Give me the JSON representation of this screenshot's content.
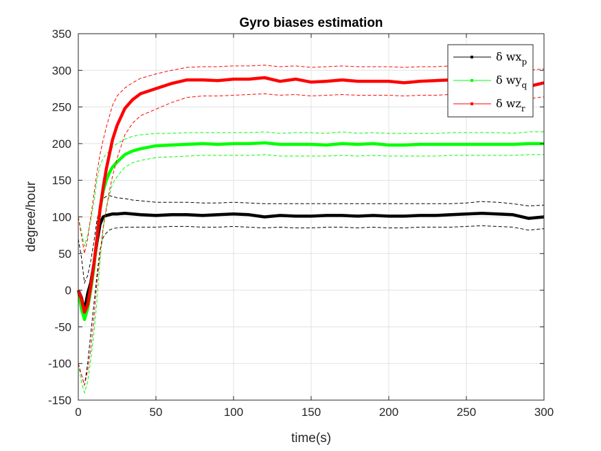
{
  "chart_data": {
    "type": "line",
    "title": "Gyro biases estimation",
    "xlabel": "time(s)",
    "ylabel": "degree/hour",
    "xlim": [
      0,
      300
    ],
    "ylim": [
      -150,
      350
    ],
    "xticks": [
      0,
      50,
      100,
      150,
      200,
      250,
      300
    ],
    "yticks": [
      -150,
      -100,
      -50,
      0,
      50,
      100,
      150,
      200,
      250,
      300,
      350
    ],
    "xtick_labels": [
      "0",
      "50",
      "100",
      "150",
      "200",
      "250",
      "300"
    ],
    "ytick_labels": [
      "-150",
      "-100",
      "-50",
      "0",
      "50",
      "100",
      "150",
      "200",
      "250",
      "300",
      "350"
    ],
    "grid": true,
    "legend_position": "top-right",
    "x": [
      0,
      2,
      4,
      6,
      8,
      10,
      12,
      14,
      16,
      18,
      20,
      22,
      25,
      30,
      35,
      40,
      50,
      60,
      70,
      80,
      90,
      100,
      110,
      120,
      130,
      140,
      150,
      160,
      170,
      180,
      190,
      200,
      210,
      220,
      230,
      240,
      250,
      260,
      270,
      280,
      290,
      300
    ],
    "series": [
      {
        "name": "δ wx",
        "subscript": "p",
        "color": "#000000",
        "values": [
          0,
          -10,
          -28,
          -5,
          10,
          35,
          65,
          90,
          100,
          102,
          103,
          104,
          104,
          105,
          104,
          103,
          102,
          103,
          103,
          102,
          103,
          104,
          103,
          100,
          102,
          101,
          101,
          102,
          102,
          101,
          102,
          101,
          101,
          102,
          102,
          103,
          104,
          105,
          104,
          103,
          98,
          100
        ],
        "upper": [
          70,
          45,
          10,
          20,
          40,
          65,
          95,
          115,
          125,
          128,
          129,
          128,
          126,
          125,
          123,
          122,
          120,
          120,
          120,
          119,
          119,
          120,
          119,
          118,
          118,
          118,
          118,
          118,
          118,
          118,
          118,
          118,
          118,
          118,
          118,
          118,
          119,
          121,
          120,
          118,
          115,
          116
        ],
        "lower": [
          -100,
          -115,
          -130,
          -100,
          -60,
          -20,
          20,
          55,
          72,
          78,
          82,
          84,
          85,
          86,
          86,
          86,
          86,
          87,
          87,
          86,
          86,
          87,
          86,
          85,
          86,
          85,
          85,
          86,
          86,
          85,
          86,
          85,
          85,
          86,
          86,
          86,
          87,
          88,
          87,
          86,
          82,
          84
        ]
      },
      {
        "name": "δ wy",
        "subscript": "q",
        "color": "#00ff00",
        "values": [
          0,
          -25,
          -40,
          -25,
          0,
          30,
          70,
          110,
          135,
          150,
          160,
          168,
          175,
          185,
          190,
          193,
          197,
          198,
          199,
          200,
          199,
          200,
          200,
          201,
          199,
          199,
          199,
          198,
          200,
          199,
          200,
          198,
          198,
          199,
          199,
          199,
          199,
          199,
          199,
          199,
          200,
          200
        ],
        "upper": [
          100,
          80,
          60,
          75,
          95,
          120,
          150,
          170,
          180,
          186,
          190,
          195,
          200,
          206,
          210,
          212,
          214,
          214,
          215,
          215,
          215,
          215,
          215,
          216,
          214,
          215,
          215,
          214,
          216,
          214,
          215,
          214,
          214,
          214,
          214,
          215,
          215,
          215,
          215,
          214,
          216,
          216
        ],
        "lower": [
          -100,
          -125,
          -140,
          -125,
          -95,
          -60,
          -15,
          40,
          85,
          112,
          130,
          145,
          155,
          168,
          174,
          177,
          181,
          182,
          183,
          184,
          184,
          184,
          184,
          185,
          183,
          183,
          183,
          183,
          184,
          183,
          184,
          183,
          183,
          183,
          183,
          184,
          184,
          184,
          184,
          184,
          185,
          185
        ]
      },
      {
        "name": "δ wz",
        "subscript": "r",
        "color": "#ff0000",
        "values": [
          0,
          -12,
          -30,
          -20,
          5,
          35,
          70,
          110,
          140,
          165,
          185,
          205,
          225,
          248,
          260,
          268,
          275,
          282,
          287,
          287,
          286,
          288,
          288,
          290,
          285,
          288,
          284,
          285,
          287,
          285,
          285,
          285,
          283,
          285,
          286,
          287,
          287,
          285,
          285,
          284,
          278,
          283
        ],
        "upper": [
          100,
          75,
          50,
          70,
          100,
          130,
          160,
          185,
          205,
          222,
          237,
          252,
          265,
          276,
          283,
          289,
          295,
          300,
          304,
          305,
          305,
          306,
          306,
          307,
          305,
          306,
          304,
          305,
          306,
          305,
          305,
          305,
          304,
          305,
          305,
          306,
          306,
          305,
          305,
          304,
          300,
          302
        ],
        "lower": [
          -100,
          -115,
          -130,
          -110,
          -80,
          -40,
          10,
          50,
          85,
          110,
          135,
          155,
          180,
          212,
          228,
          238,
          247,
          256,
          263,
          265,
          265,
          266,
          267,
          268,
          266,
          267,
          265,
          266,
          267,
          266,
          266,
          266,
          265,
          266,
          266,
          267,
          267,
          266,
          266,
          265,
          261,
          264
        ]
      }
    ]
  }
}
